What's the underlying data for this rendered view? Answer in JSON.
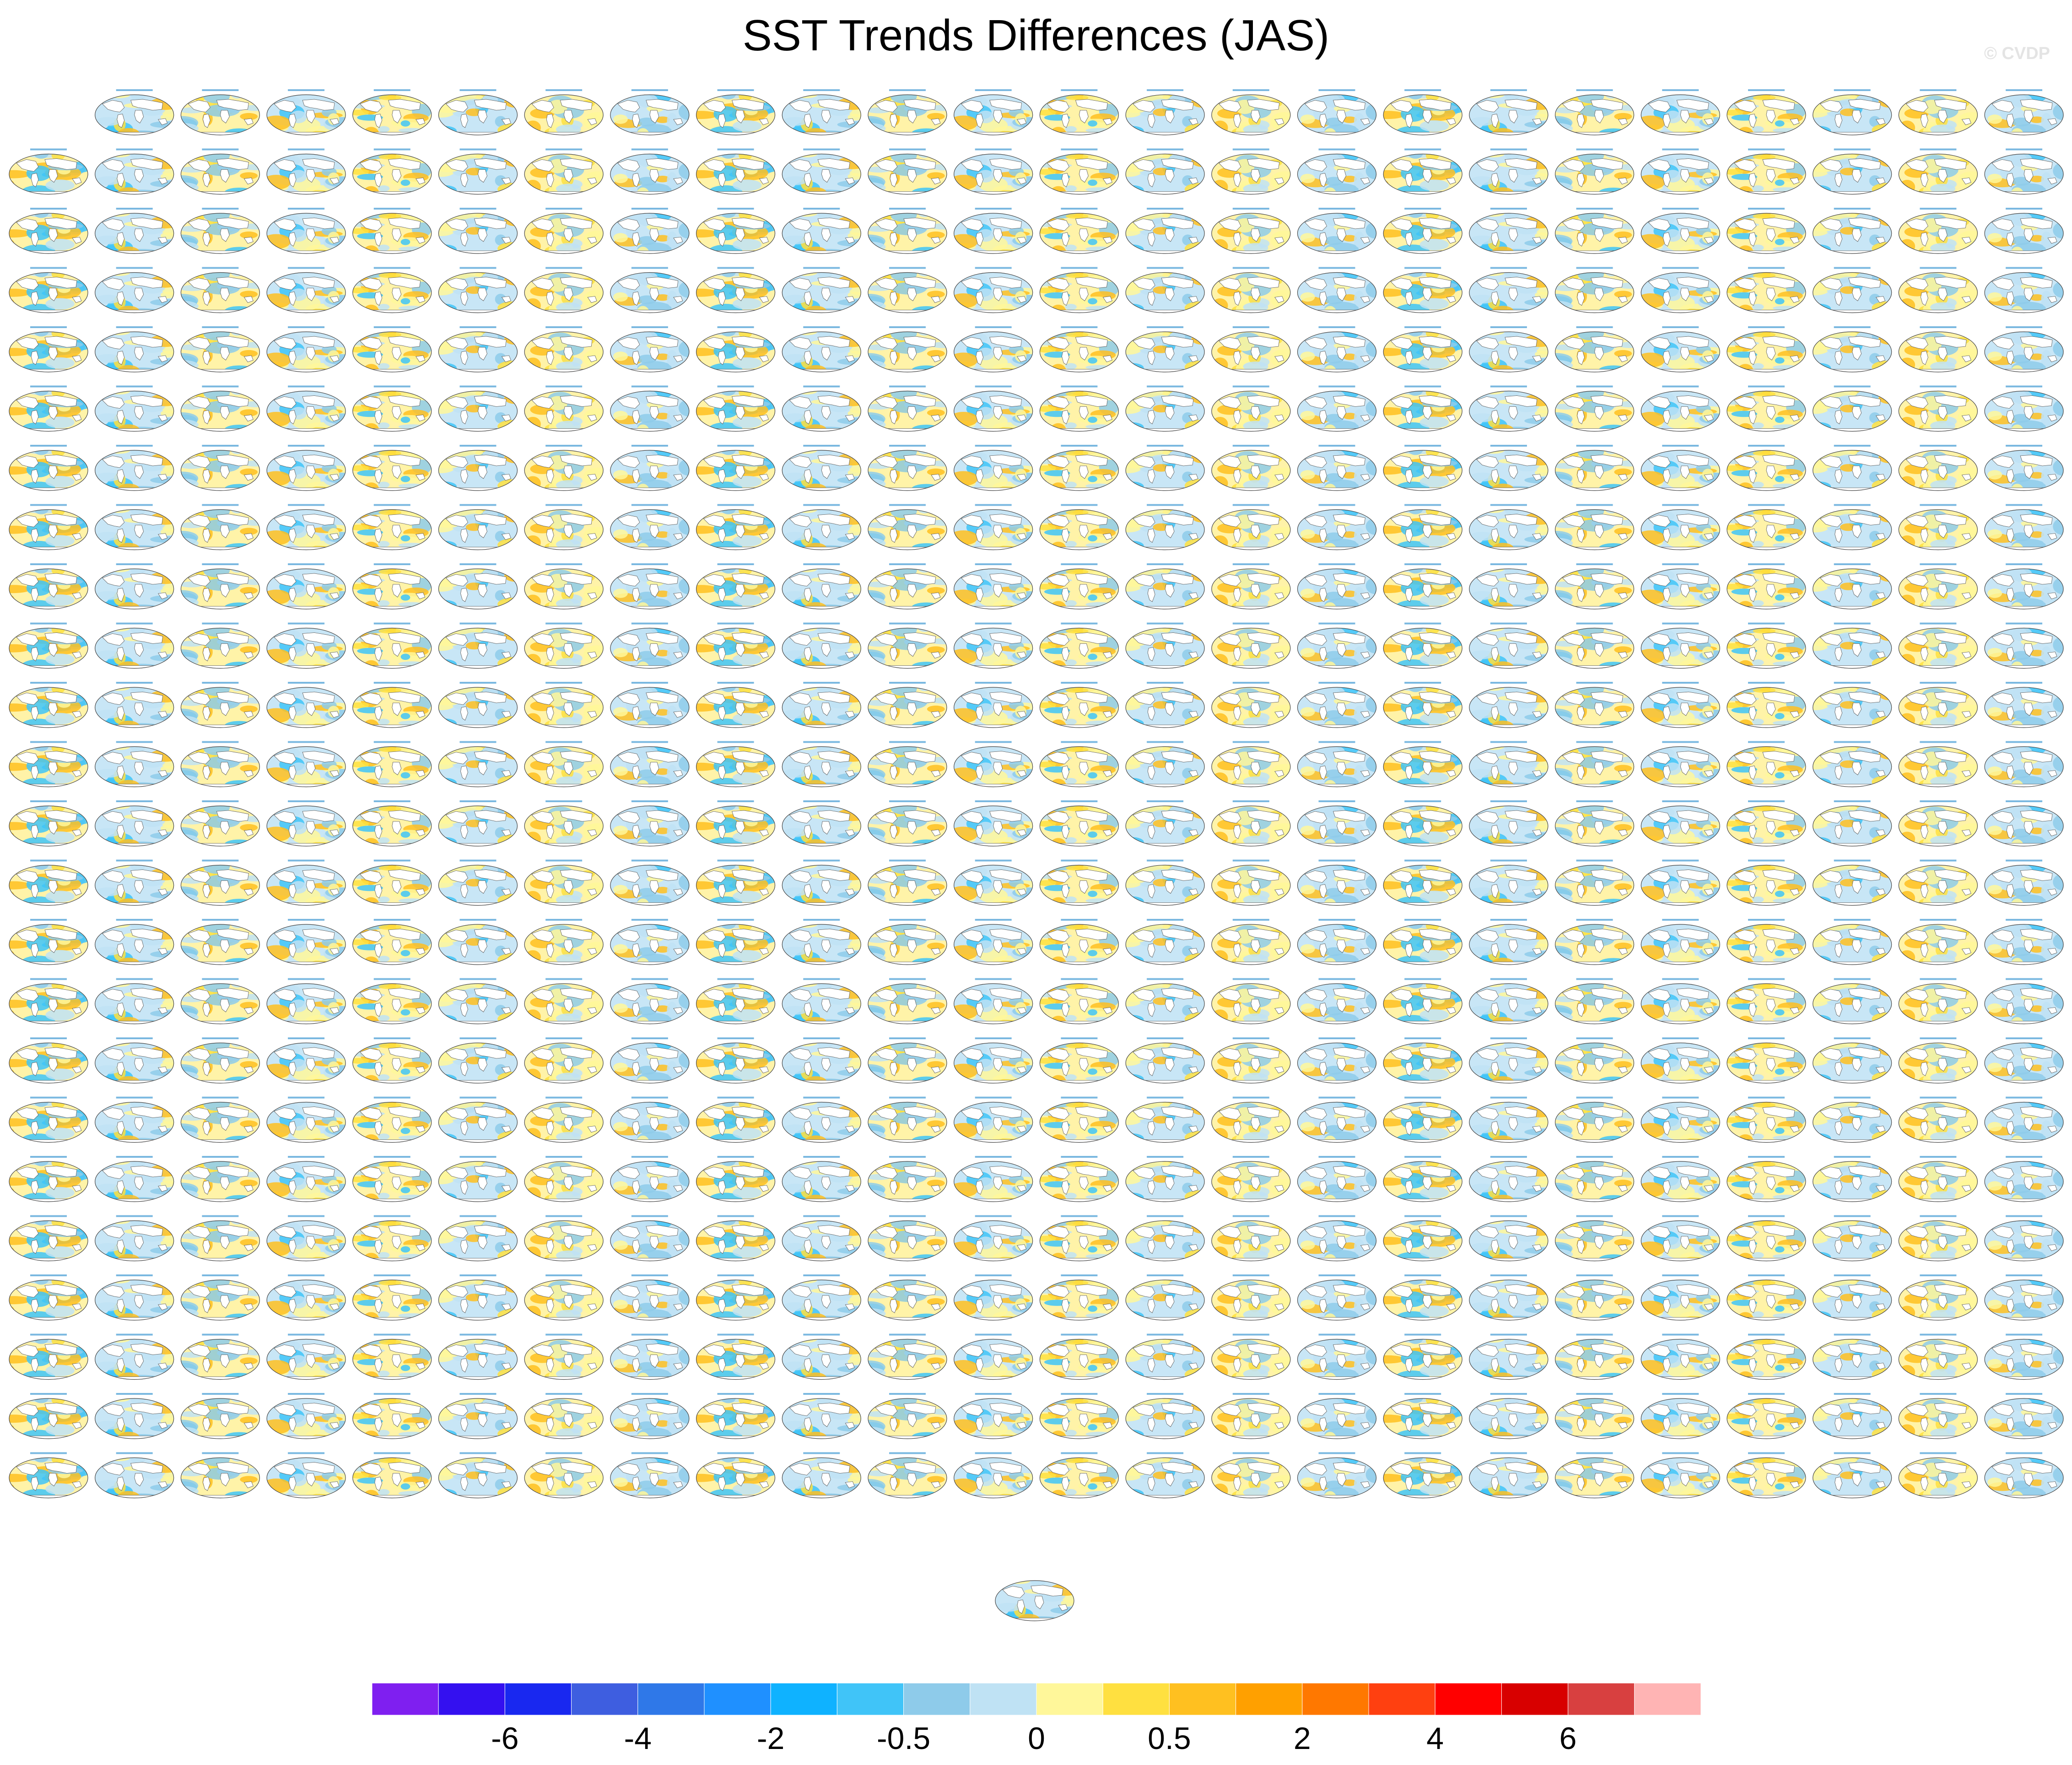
{
  "title": "SST Trends Differences (JAS)",
  "watermark": "© CVDP",
  "chart_data": {
    "type": "heatmap",
    "title": "SST Trends Differences (JAS)",
    "panel_grid": {
      "rows": 24,
      "cols": 24,
      "first_row_panels": 23,
      "extra_panels": 1
    },
    "colorbar": {
      "colors": [
        "#7f1ff0",
        "#3410f0",
        "#1928f0",
        "#3e5ee0",
        "#2f78e8",
        "#1f90ff",
        "#0fb2ff",
        "#40c4f8",
        "#8ecbea",
        "#bfe2f4",
        "#fff79a",
        "#ffe040",
        "#ffc020",
        "#ffa000",
        "#ff7800",
        "#ff4010",
        "#ff0000",
        "#d80000",
        "#d84040",
        "#ffb4b4"
      ],
      "tick_labels": [
        "-6",
        "-4",
        "-2",
        "-0.5",
        "0",
        "0.5",
        "2",
        "4",
        "6"
      ]
    }
  }
}
